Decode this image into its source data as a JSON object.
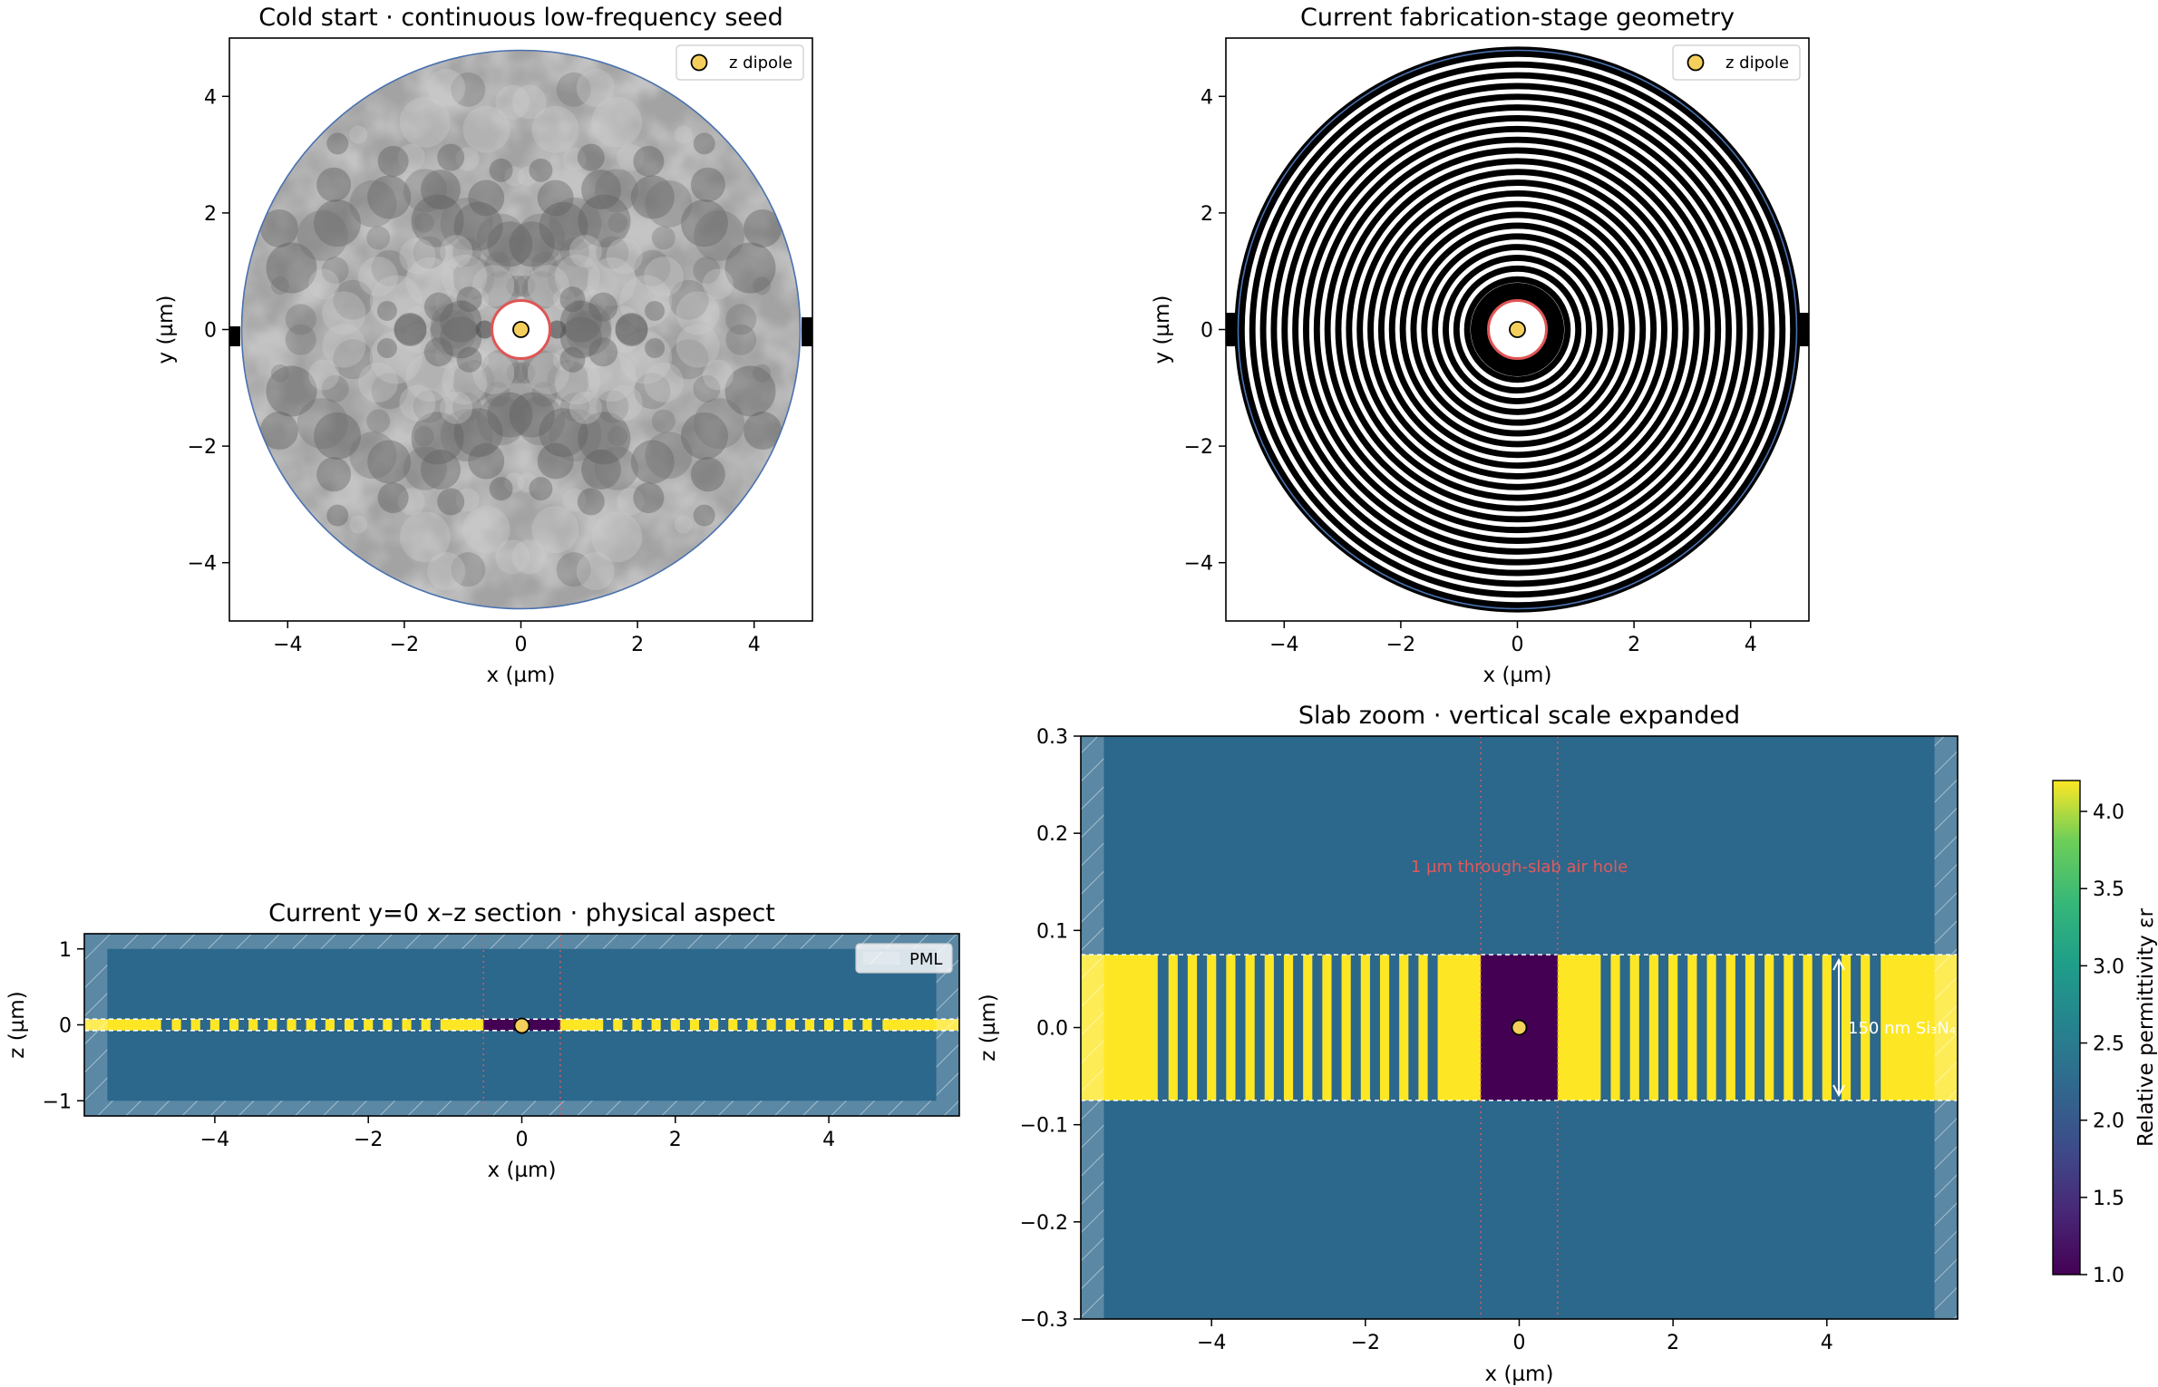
{
  "chart_data": [
    {
      "id": "seed",
      "type": "heatmap",
      "title": "Cold start · continuous low-frequency seed",
      "xlabel": "x (µm)",
      "ylabel": "y (µm)",
      "xlim": [
        -5,
        5
      ],
      "ylim": [
        -5,
        5
      ],
      "xticks": [
        -4,
        -2,
        0,
        2,
        4
      ],
      "yticks": [
        -4,
        -2,
        0,
        2,
        4
      ],
      "tick_labels_x": [
        "−4",
        "−2",
        "0",
        "2",
        "4"
      ],
      "tick_labels_y": [
        "−4",
        "−2",
        "0",
        "2",
        "4"
      ],
      "design_radius": 4.8,
      "center_hole_radius": 0.5,
      "legend": {
        "label": "z dipole",
        "position": "top-right"
      },
      "colors": {
        "dipole": "#f5cf5b",
        "hole_outline": "#e05555",
        "disk_outline": "#4a72b0"
      }
    },
    {
      "id": "fab",
      "type": "heatmap",
      "title": "Current fabrication-stage geometry",
      "xlabel": "x (µm)",
      "ylabel": "y (µm)",
      "xlim": [
        -5,
        5
      ],
      "ylim": [
        -5,
        5
      ],
      "xticks": [
        -4,
        -2,
        0,
        2,
        4
      ],
      "yticks": [
        -4,
        -2,
        0,
        2,
        4
      ],
      "tick_labels_x": [
        "−4",
        "−2",
        "0",
        "2",
        "4"
      ],
      "tick_labels_y": [
        "−4",
        "−2",
        "0",
        "2",
        "4"
      ],
      "design_radius": 4.8,
      "center_hole_radius": 0.5,
      "ring_count": 22,
      "legend": {
        "label": "z dipole",
        "position": "top-right"
      }
    },
    {
      "id": "xz",
      "type": "heatmap",
      "title": "Current y=0 x–z section · physical aspect",
      "xlabel": "x (µm)",
      "ylabel": "z (µm)",
      "xlim": [
        -5.7,
        5.7
      ],
      "ylim": [
        -1.2,
        1.2
      ],
      "xticks": [
        -4,
        -2,
        0,
        2,
        4
      ],
      "yticks": [
        -1,
        0,
        1
      ],
      "tick_labels_x": [
        "−4",
        "−2",
        "0",
        "2",
        "4"
      ],
      "tick_labels_y": [
        "−1",
        "0",
        "1"
      ],
      "slab_thickness": 0.15,
      "hole_edges": [
        -0.5,
        0.5
      ],
      "pml": {
        "x_thickness": 0.3,
        "z_thickness": 0.2
      },
      "legend": {
        "label": "PML",
        "position": "top-right"
      }
    },
    {
      "id": "zoom",
      "type": "heatmap",
      "title": "Slab zoom · vertical scale expanded",
      "xlabel": "x (µm)",
      "ylabel": "z (µm)",
      "xlim": [
        -5.7,
        5.7
      ],
      "ylim": [
        -0.3,
        0.3
      ],
      "xticks": [
        -4,
        -2,
        0,
        2,
        4
      ],
      "yticks": [
        -0.3,
        -0.2,
        -0.1,
        0.0,
        0.1,
        0.2,
        0.3
      ],
      "tick_labels_x": [
        "−4",
        "−2",
        "0",
        "2",
        "4"
      ],
      "tick_labels_y": [
        "−0.3",
        "−0.2",
        "−0.1",
        "0.0",
        "0.1",
        "0.2",
        "0.3"
      ],
      "slab_thickness": 0.15,
      "hole_edges": [
        -0.5,
        0.5
      ],
      "annotations": {
        "hole": "1 µm through-slab air hole",
        "slab": "150 nm Si₃N₄"
      },
      "stripes": [
        [
          -5.7,
          -4.7
        ],
        [
          -4.56,
          -4.44
        ],
        [
          -4.31,
          -4.19
        ],
        [
          -4.06,
          -3.94
        ],
        [
          -3.81,
          -3.69
        ],
        [
          -3.56,
          -3.44
        ],
        [
          -3.31,
          -3.19
        ],
        [
          -3.06,
          -2.94
        ],
        [
          -2.81,
          -2.69
        ],
        [
          -2.56,
          -2.44
        ],
        [
          -2.31,
          -2.19
        ],
        [
          -2.06,
          -1.94
        ],
        [
          -1.81,
          -1.69
        ],
        [
          -1.56,
          -1.44
        ],
        [
          -1.31,
          -1.19
        ],
        [
          -1.06,
          -0.5
        ],
        [
          0.5,
          1.06
        ],
        [
          1.19,
          1.31
        ],
        [
          1.44,
          1.56
        ],
        [
          1.69,
          1.81
        ],
        [
          1.94,
          2.06
        ],
        [
          2.19,
          2.31
        ],
        [
          2.44,
          2.56
        ],
        [
          2.69,
          2.81
        ],
        [
          2.94,
          3.06
        ],
        [
          3.19,
          3.31
        ],
        [
          3.44,
          3.56
        ],
        [
          3.69,
          3.81
        ],
        [
          3.94,
          4.06
        ],
        [
          4.19,
          4.31
        ],
        [
          4.44,
          4.56
        ],
        [
          4.7,
          5.7
        ]
      ]
    }
  ],
  "colorbar": {
    "label": "Relative permittivity εr",
    "range": [
      1.0,
      4.2
    ],
    "ticks": [
      1.0,
      1.5,
      2.0,
      2.5,
      3.0,
      3.5,
      4.0
    ],
    "tick_labels": [
      "1.0",
      "1.5",
      "2.0",
      "2.5",
      "3.0",
      "3.5",
      "4.0"
    ],
    "colors": {
      "air": "#440154",
      "cladding": "#2c678c",
      "slab": "#fde725"
    }
  }
}
